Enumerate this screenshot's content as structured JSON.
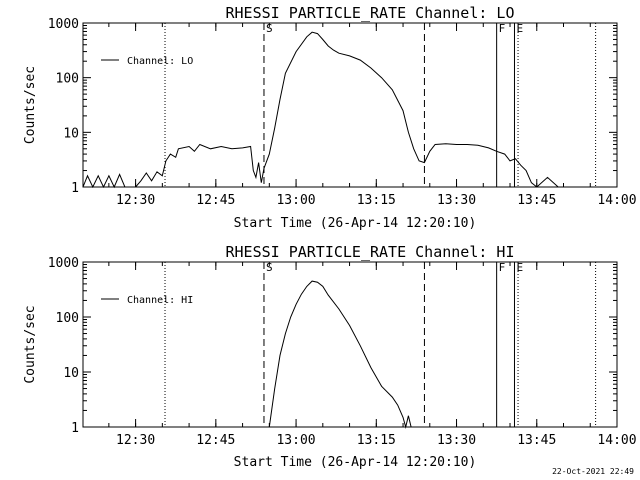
{
  "footer": {
    "timestamp": "22-Oct-2021 22:49"
  },
  "chart_data": [
    {
      "type": "line",
      "title": "RHESSI PARTICLE_RATE Channel: LO",
      "xlabel": "Start Time (26-Apr-14 12:20:10)",
      "ylabel": "Counts/sec",
      "xlim": [
        "12:20:10",
        "14:00:00"
      ],
      "ylim": [
        1,
        1000
      ],
      "yscale": "log",
      "xtick_labels": [
        "12:30",
        "12:45",
        "13:00",
        "13:15",
        "13:30",
        "13:45",
        "14:00"
      ],
      "ytick_labels": [
        "1",
        "10",
        "100",
        "1000"
      ],
      "legend": {
        "position": "top-left",
        "entries": [
          "Channel: LO"
        ]
      },
      "markers": [
        {
          "label": "S",
          "time": "12:54:00",
          "style": "dashed"
        },
        {
          "label": "",
          "time": "13:24:00",
          "style": "dashed"
        },
        {
          "label": "F",
          "time": "13:37:30",
          "style": "solid"
        },
        {
          "label": "E",
          "time": "13:40:50",
          "style": "solid"
        },
        {
          "label": "",
          "time": "12:35:30",
          "style": "dotted"
        },
        {
          "label": "",
          "time": "13:41:30",
          "style": "dotted"
        },
        {
          "label": "",
          "time": "13:56:00",
          "style": "dotted"
        }
      ],
      "series": [
        {
          "name": "Channel: LO",
          "points": [
            [
              "12:20:10",
              1.0
            ],
            [
              "12:21:00",
              1.6
            ],
            [
              "12:22:00",
              1.0
            ],
            [
              "12:23:00",
              1.6
            ],
            [
              "12:24:00",
              1.0
            ],
            [
              "12:25:00",
              1.6
            ],
            [
              "12:26:00",
              1.0
            ],
            [
              "12:27:00",
              1.7
            ],
            [
              "12:28:00",
              1.0
            ],
            [
              "12:30:00",
              1.0
            ],
            [
              "12:31:00",
              1.3
            ],
            [
              "12:32:00",
              1.8
            ],
            [
              "12:33:00",
              1.3
            ],
            [
              "12:34:00",
              1.9
            ],
            [
              "12:35:00",
              1.6
            ],
            [
              "12:35:40",
              3.0
            ],
            [
              "12:36:30",
              4.0
            ],
            [
              "12:37:30",
              3.5
            ],
            [
              "12:38:00",
              5.0
            ],
            [
              "12:40:00",
              5.5
            ],
            [
              "12:41:00",
              4.5
            ],
            [
              "12:42:00",
              6.0
            ],
            [
              "12:44:00",
              5.0
            ],
            [
              "12:46:00",
              5.5
            ],
            [
              "12:48:00",
              5.0
            ],
            [
              "12:50:00",
              5.2
            ],
            [
              "12:51:30",
              5.5
            ],
            [
              "12:52:00",
              2.0
            ],
            [
              "12:52:30",
              1.5
            ],
            [
              "12:53:00",
              2.8
            ],
            [
              "12:53:30",
              1.2
            ],
            [
              "12:54:00",
              2.2
            ],
            [
              "12:55:00",
              4.0
            ],
            [
              "12:56:00",
              12
            ],
            [
              "12:57:00",
              40
            ],
            [
              "12:58:00",
              120
            ],
            [
              "13:00:00",
              300
            ],
            [
              "13:02:00",
              560
            ],
            [
              "13:03:00",
              680
            ],
            [
              "13:04:00",
              640
            ],
            [
              "13:05:00",
              500
            ],
            [
              "13:06:00",
              380
            ],
            [
              "13:07:00",
              320
            ],
            [
              "13:08:00",
              280
            ],
            [
              "13:10:00",
              250
            ],
            [
              "13:12:00",
              210
            ],
            [
              "13:14:00",
              150
            ],
            [
              "13:16:00",
              100
            ],
            [
              "13:18:00",
              60
            ],
            [
              "13:20:00",
              25
            ],
            [
              "13:21:00",
              10
            ],
            [
              "13:22:00",
              5.0
            ],
            [
              "13:23:00",
              3.0
            ],
            [
              "13:24:00",
              2.8
            ],
            [
              "13:25:00",
              4.5
            ],
            [
              "13:26:00",
              6.0
            ],
            [
              "13:28:00",
              6.2
            ],
            [
              "13:30:00",
              6.0
            ],
            [
              "13:32:00",
              6.0
            ],
            [
              "13:34:00",
              5.8
            ],
            [
              "13:36:00",
              5.2
            ],
            [
              "13:37:30",
              4.5
            ],
            [
              "13:39:00",
              4.0
            ],
            [
              "13:40:00",
              3.0
            ],
            [
              "13:41:00",
              3.3
            ],
            [
              "13:42:00",
              2.5
            ],
            [
              "13:43:00",
              2.0
            ],
            [
              "13:44:00",
              1.2
            ],
            [
              "13:45:00",
              1.0
            ],
            [
              "13:47:00",
              1.5
            ],
            [
              "13:49:00",
              1.0
            ]
          ]
        }
      ]
    },
    {
      "type": "line",
      "title": "RHESSI PARTICLE_RATE Channel: HI",
      "xlabel": "Start Time (26-Apr-14 12:20:10)",
      "ylabel": "Counts/sec",
      "xlim": [
        "12:20:10",
        "14:00:00"
      ],
      "ylim": [
        1,
        1000
      ],
      "yscale": "log",
      "xtick_labels": [
        "12:30",
        "12:45",
        "13:00",
        "13:15",
        "13:30",
        "13:45",
        "14:00"
      ],
      "ytick_labels": [
        "1",
        "10",
        "100",
        "1000"
      ],
      "legend": {
        "position": "top-left",
        "entries": [
          "Channel: HI"
        ]
      },
      "markers": [
        {
          "label": "S",
          "time": "12:54:00",
          "style": "dashed"
        },
        {
          "label": "",
          "time": "13:24:00",
          "style": "dashed"
        },
        {
          "label": "F",
          "time": "13:37:30",
          "style": "solid"
        },
        {
          "label": "E",
          "time": "13:40:50",
          "style": "solid"
        },
        {
          "label": "",
          "time": "12:35:30",
          "style": "dotted"
        },
        {
          "label": "",
          "time": "13:41:30",
          "style": "dotted"
        },
        {
          "label": "",
          "time": "13:56:00",
          "style": "dotted"
        }
      ],
      "series": [
        {
          "name": "Channel: HI",
          "points": [
            [
              "12:55:00",
              1.0
            ],
            [
              "12:56:00",
              5.0
            ],
            [
              "12:57:00",
              20
            ],
            [
              "12:58:00",
              50
            ],
            [
              "12:59:00",
              100
            ],
            [
              "13:00:00",
              170
            ],
            [
              "13:01:00",
              260
            ],
            [
              "13:02:00",
              360
            ],
            [
              "13:03:00",
              450
            ],
            [
              "13:04:00",
              430
            ],
            [
              "13:05:00",
              360
            ],
            [
              "13:06:00",
              250
            ],
            [
              "13:08:00",
              140
            ],
            [
              "13:10:00",
              70
            ],
            [
              "13:12:00",
              30
            ],
            [
              "13:14:00",
              12
            ],
            [
              "13:16:00",
              5.5
            ],
            [
              "13:18:00",
              3.5
            ],
            [
              "13:19:00",
              2.5
            ],
            [
              "13:20:00",
              1.5
            ],
            [
              "13:20:30",
              1.0
            ],
            [
              "13:21:00",
              1.6
            ],
            [
              "13:21:30",
              1.0
            ]
          ]
        }
      ]
    }
  ]
}
